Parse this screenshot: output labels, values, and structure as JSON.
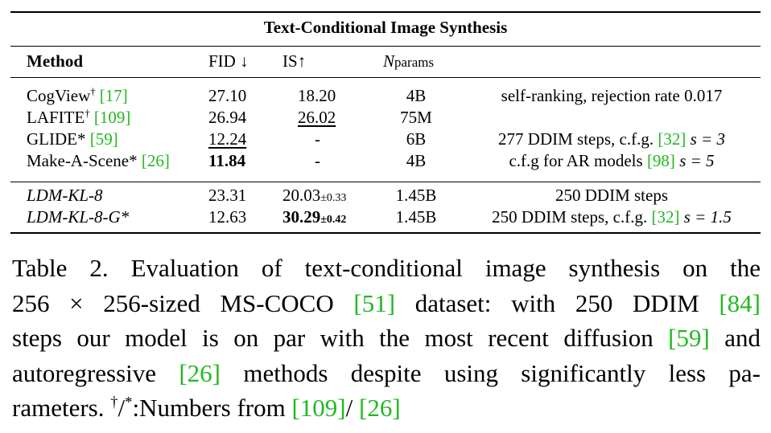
{
  "table": {
    "title": "Text-Conditional Image Synthesis",
    "headers": {
      "method": "Method",
      "fid": "FID ↓",
      "is": "IS↑",
      "nparams_n": "N",
      "nparams_sub": "params"
    },
    "rows": [
      {
        "method": "CogView",
        "mark": "†",
        "cite": "[17]",
        "fid": "27.10",
        "is": "18.20",
        "nparams": "4B",
        "notes": "self-ranking, rejection rate 0.017"
      },
      {
        "method": "LAFITE",
        "mark": "†",
        "cite": "[109]",
        "fid": "26.94",
        "is": "26.02",
        "nparams": "75M",
        "notes": ""
      },
      {
        "method": "GLIDE*",
        "mark": "",
        "cite": "[59]",
        "fid": "12.24",
        "is": "-",
        "nparams": "6B",
        "notes_pre": "277 DDIM steps, c.f.g. ",
        "notes_cite": "[32]",
        "notes_post": " s = 3"
      },
      {
        "method": "Make-A-Scene*",
        "mark": "",
        "cite": "[26]",
        "fid": "11.84",
        "is": "-",
        "nparams": "4B",
        "notes_pre": "c.f.g for AR models ",
        "notes_cite": "[98]",
        "notes_post": " s = 5"
      },
      {
        "method": "LDM-KL-8",
        "fid": "23.31",
        "is": "20.03",
        "is_pm": "±0.33",
        "nparams": "1.45B",
        "notes": "250 DDIM steps"
      },
      {
        "method": "LDM-KL-8-G*",
        "fid": "12.63",
        "is": "30.29",
        "is_pm": "±0.42",
        "nparams": "1.45B",
        "notes_pre": "250 DDIM steps, c.f.g. ",
        "notes_cite": "[32]",
        "notes_post": " s = 1.5"
      }
    ]
  },
  "caption": {
    "l1": "Table 2.   Evaluation of text-conditional image synthesis on the",
    "l2_a": "256 × 256-sized MS-COCO ",
    "l2_cite": "[51]",
    "l2_b": " dataset:  with 250 DDIM ",
    "l2_cite2": "[84]",
    "l3_a": "steps our model is on par with the most recent diffusion ",
    "l3_cite": "[59]",
    "l3_b": " and",
    "l4_a": "autoregressive ",
    "l4_cite": "[26]",
    "l4_b": " methods despite using significantly less pa-",
    "l5_a": "rameters. ",
    "l5_sup": "†",
    "l5_b": "/",
    "l5_sup2": "*",
    "l5_c": ":Numbers from ",
    "l5_cite": "[109]",
    "l5_d": "/ ",
    "l5_cite2": "[26]"
  }
}
